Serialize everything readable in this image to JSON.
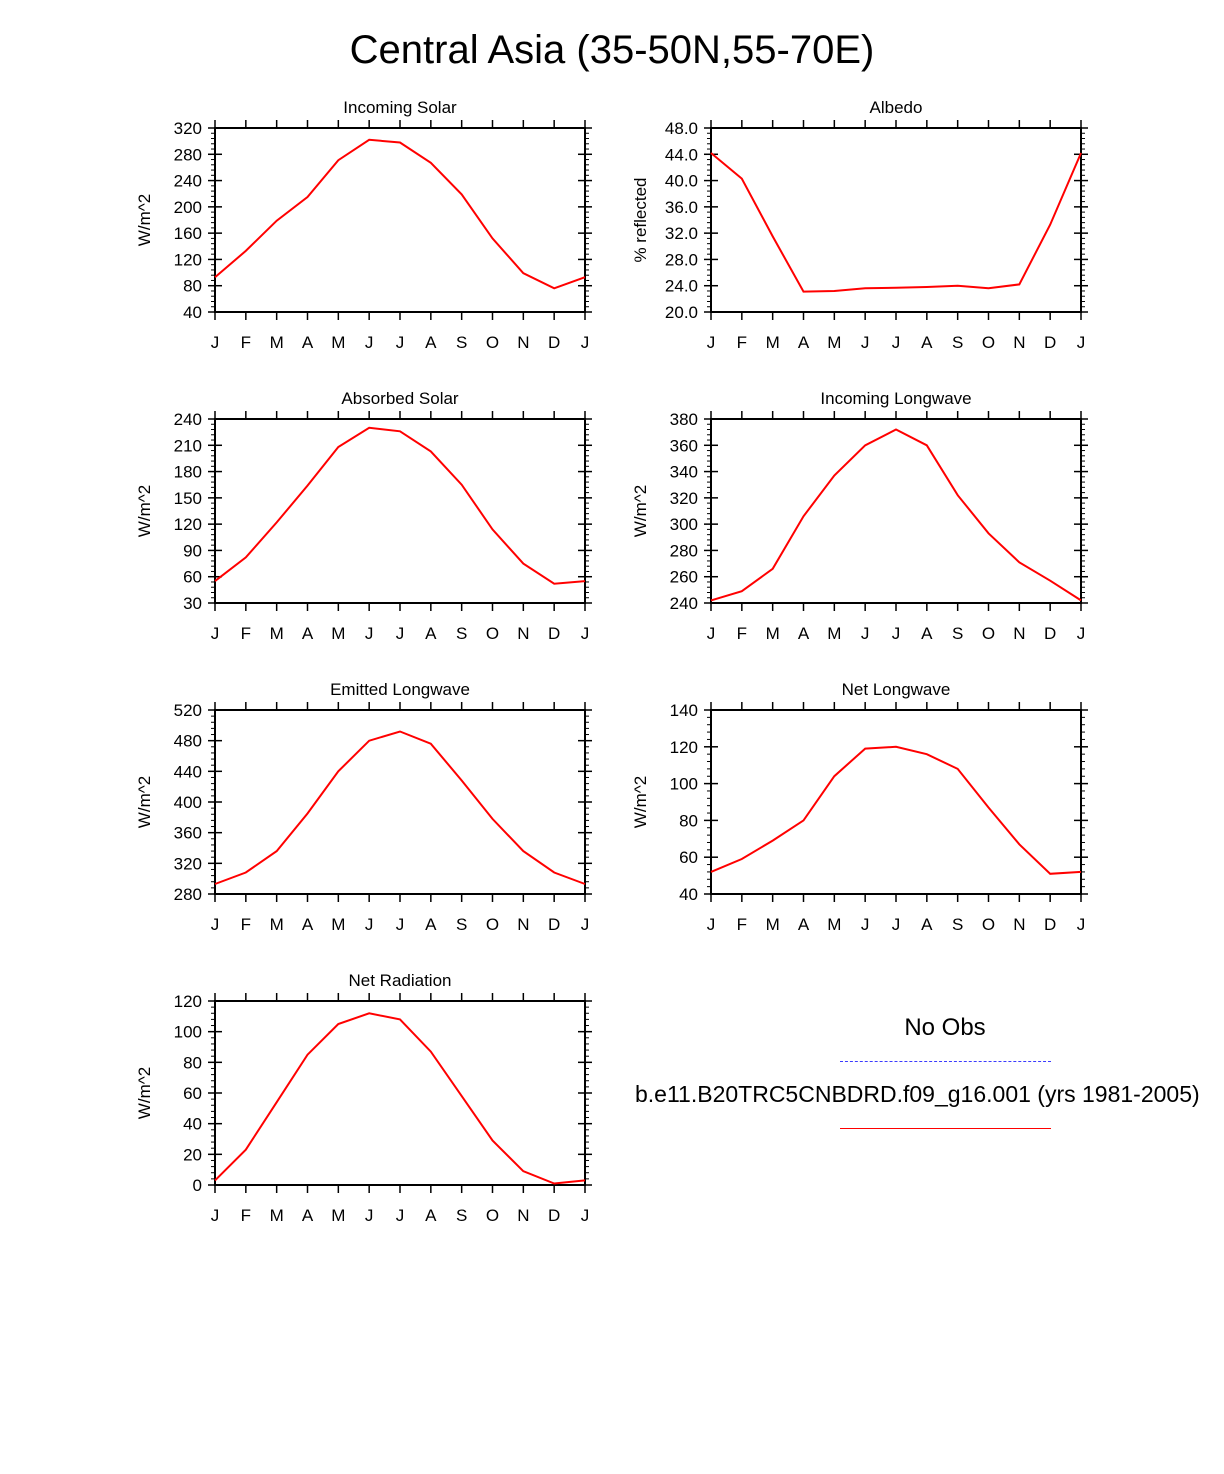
{
  "title": "Central Asia (35-50N,55-70E)",
  "legend": {
    "no_obs_label": "No Obs",
    "case_label": "b.e11.B20TRC5CNBDRD.f09_g16.001 (yrs 1981-2005)",
    "no_obs_color": "#3b3bff",
    "case_color": "#ff0000"
  },
  "chart_data": [
    {
      "type": "line",
      "title": "Incoming Solar",
      "ylabel": "W/m^2",
      "categories": [
        "J",
        "F",
        "M",
        "A",
        "M",
        "J",
        "J",
        "A",
        "S",
        "O",
        "N",
        "D",
        "J"
      ],
      "ylim": [
        40,
        320
      ],
      "yticks": [
        "40",
        "80",
        "120",
        "160",
        "200",
        "240",
        "280",
        "320"
      ],
      "series": [
        {
          "color": "#ff0000",
          "values": [
            93,
            133,
            179,
            215,
            271,
            302,
            298,
            267,
            219,
            152,
            99,
            76,
            93
          ]
        }
      ]
    },
    {
      "type": "line",
      "title": "Albedo",
      "ylabel": "% reflected",
      "categories": [
        "J",
        "F",
        "M",
        "A",
        "M",
        "J",
        "J",
        "A",
        "S",
        "O",
        "N",
        "D",
        "J"
      ],
      "ylim": [
        20,
        48
      ],
      "yticks": [
        "20.0",
        "24.0",
        "28.0",
        "32.0",
        "36.0",
        "40.0",
        "44.0",
        "48.0"
      ],
      "series": [
        {
          "color": "#ff0000",
          "values": [
            44.2,
            40.3,
            31.5,
            23.1,
            23.2,
            23.6,
            23.7,
            23.8,
            24.0,
            23.6,
            24.2,
            33.3,
            44.2
          ]
        }
      ]
    },
    {
      "type": "line",
      "title": "Absorbed Solar",
      "ylabel": "W/m^2",
      "categories": [
        "J",
        "F",
        "M",
        "A",
        "M",
        "J",
        "J",
        "A",
        "S",
        "O",
        "N",
        "D",
        "J"
      ],
      "ylim": [
        30,
        240
      ],
      "yticks": [
        "30",
        "60",
        "90",
        "120",
        "150",
        "180",
        "210",
        "240"
      ],
      "series": [
        {
          "color": "#ff0000",
          "values": [
            55,
            82,
            122,
            164,
            208,
            230,
            226,
            203,
            165,
            114,
            75,
            52,
            55
          ]
        }
      ]
    },
    {
      "type": "line",
      "title": "Incoming Longwave",
      "ylabel": "W/m^2",
      "categories": [
        "J",
        "F",
        "M",
        "A",
        "M",
        "J",
        "J",
        "A",
        "S",
        "O",
        "N",
        "D",
        "J"
      ],
      "ylim": [
        240,
        380
      ],
      "yticks": [
        "240",
        "260",
        "280",
        "300",
        "320",
        "340",
        "360",
        "380"
      ],
      "series": [
        {
          "color": "#ff0000",
          "values": [
            242,
            249,
            266,
            306,
            337,
            360,
            372,
            360,
            322,
            293,
            271,
            257,
            242
          ]
        }
      ]
    },
    {
      "type": "line",
      "title": "Emitted Longwave",
      "ylabel": "W/m^2",
      "categories": [
        "J",
        "F",
        "M",
        "A",
        "M",
        "J",
        "J",
        "A",
        "S",
        "O",
        "N",
        "D",
        "J"
      ],
      "ylim": [
        280,
        520
      ],
      "yticks": [
        "280",
        "320",
        "360",
        "400",
        "440",
        "480",
        "520"
      ],
      "series": [
        {
          "color": "#ff0000",
          "values": [
            293,
            308,
            336,
            385,
            440,
            480,
            492,
            476,
            428,
            378,
            336,
            308,
            293
          ]
        }
      ]
    },
    {
      "type": "line",
      "title": "Net Longwave",
      "ylabel": "W/m^2",
      "categories": [
        "J",
        "F",
        "M",
        "A",
        "M",
        "J",
        "J",
        "A",
        "S",
        "O",
        "N",
        "D",
        "J"
      ],
      "ylim": [
        40,
        140
      ],
      "yticks": [
        "40",
        "60",
        "80",
        "100",
        "120",
        "140"
      ],
      "series": [
        {
          "color": "#ff0000",
          "values": [
            52,
            59,
            69,
            80,
            104,
            119,
            120,
            116,
            108,
            87,
            67,
            51,
            52
          ]
        }
      ]
    },
    {
      "type": "line",
      "title": "Net Radiation",
      "ylabel": "W/m^2",
      "categories": [
        "J",
        "F",
        "M",
        "A",
        "M",
        "J",
        "J",
        "A",
        "S",
        "O",
        "N",
        "D",
        "J"
      ],
      "ylim": [
        0,
        120
      ],
      "yticks": [
        "0",
        "20",
        "40",
        "60",
        "80",
        "100",
        "120"
      ],
      "series": [
        {
          "color": "#ff0000",
          "values": [
            3,
            23,
            54,
            85,
            105,
            112,
            108,
            87,
            58,
            29,
            9,
            1,
            3
          ]
        }
      ]
    }
  ]
}
